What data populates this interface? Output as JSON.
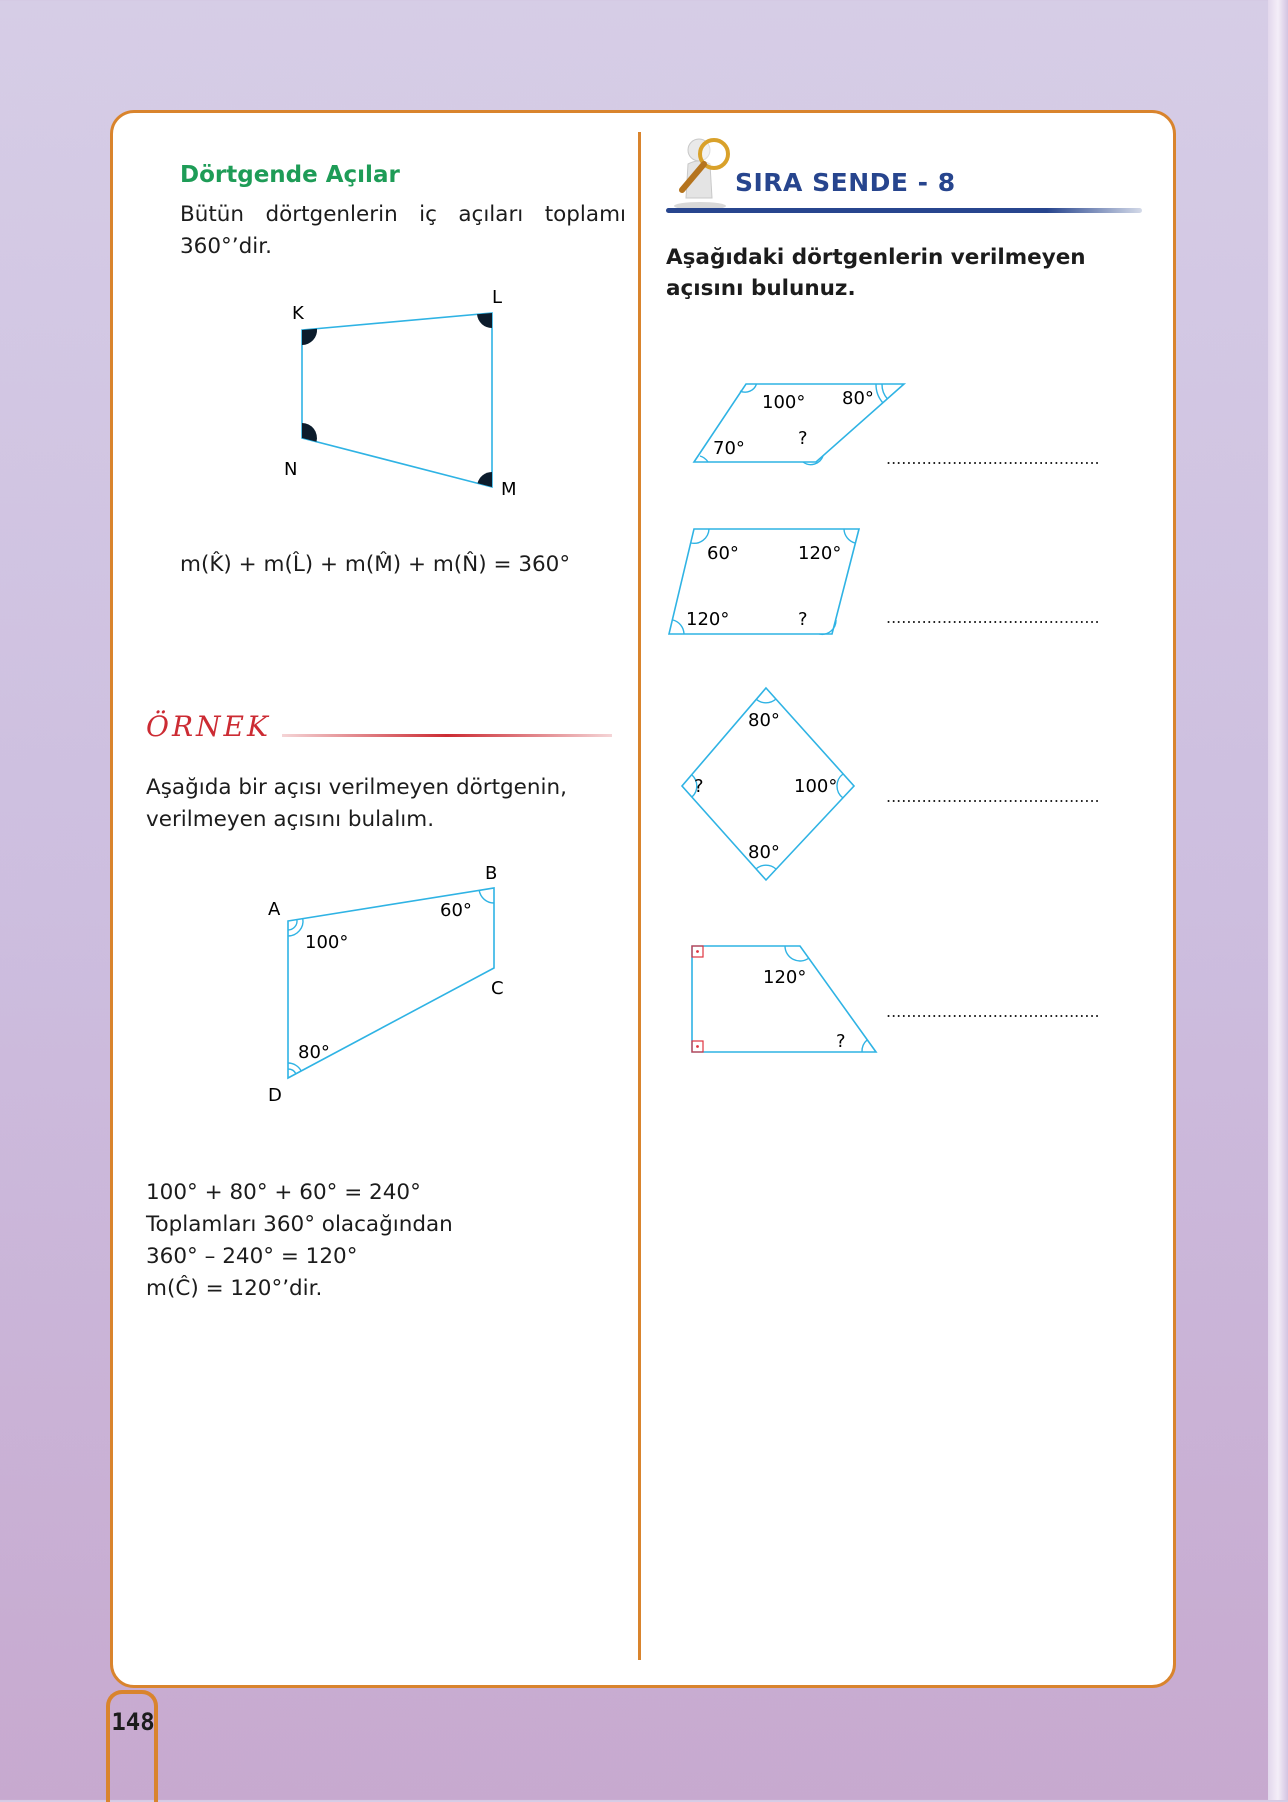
{
  "left": {
    "heading": "Dörtgende Açılar",
    "intro": "Bütün dörtgenlerin iç açıları toplamı 360°’dir.",
    "fig1": {
      "K": "K",
      "L": "L",
      "M": "M",
      "N": "N"
    },
    "formula": "m(K̂) + m(L̂) + m(M̂) + m(N̂) = 360°",
    "example_title": "ÖRNEK",
    "example_text": "Aşağıda bir açısı verilmeyen dörtgenin, verilmeyen açısını bulalım.",
    "fig2": {
      "A": "A",
      "B": "B",
      "C": "C",
      "D": "D",
      "angle_A": "100°",
      "angle_B": "60°",
      "angle_D": "80°"
    },
    "solution": [
      "100° + 80° + 60° = 240°",
      "Toplamları 360° olacağından",
      "360° – 240° = 120°",
      "m(Ĉ) = 120°’dir."
    ]
  },
  "right": {
    "title": "SIRA SENDE - 8",
    "task": "Aşağıdaki dörtgenlerin verilmeyen açısını bulunuz.",
    "answer_blank": "..........................................",
    "shape1": {
      "a": "100°",
      "b": "80°",
      "c": "70°",
      "q": "?"
    },
    "shape2": {
      "a": "60°",
      "b": "120°",
      "c": "120°",
      "q": "?"
    },
    "shape3": {
      "top": "80°",
      "left": "?",
      "right": "100°",
      "bottom": "80°"
    },
    "shape4": {
      "a": "120°",
      "q": "?"
    }
  },
  "page_number": "148",
  "colors": {
    "frame": "#d9842d",
    "heading_green": "#1e9c57",
    "title_blue": "#27458e",
    "example_red": "#cc2b33",
    "figure_line": "#2fb3e4"
  }
}
